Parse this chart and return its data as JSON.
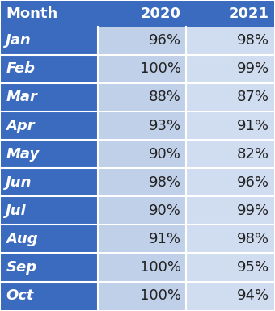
{
  "months": [
    "Jan",
    "Feb",
    "Mar",
    "Apr",
    "May",
    "Jun",
    "Jul",
    "Aug",
    "Sep",
    "Oct"
  ],
  "col_2020": [
    "96%",
    "100%",
    "88%",
    "93%",
    "90%",
    "98%",
    "90%",
    "91%",
    "100%",
    "100%"
  ],
  "col_2021": [
    "98%",
    "99%",
    "87%",
    "91%",
    "82%",
    "96%",
    "99%",
    "98%",
    "95%",
    "94%"
  ],
  "header_bg": "#3A6BBF",
  "header_text": "#FFFFFF",
  "month_col_bg": "#3A6BBF",
  "month_col_text": "#FFFFFF",
  "data_col1_bg": "#BFD0E8",
  "data_col2_bg": "#D0DCF0",
  "data_text": "#222222",
  "col_headers": [
    "Month",
    "2020",
    "2021"
  ],
  "outer_bg": "#FFFFFF",
  "divider_color": "#FFFFFF"
}
